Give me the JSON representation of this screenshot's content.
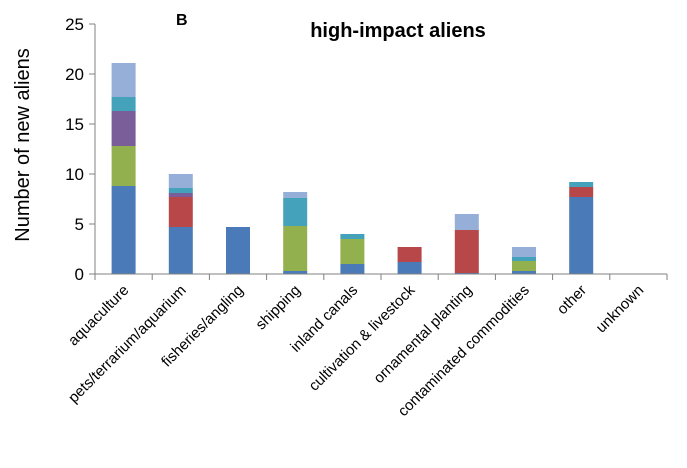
{
  "chart_data": {
    "type": "bar",
    "stacked": true,
    "panel_label": "B",
    "title": "high-impact aliens",
    "xlabel": "",
    "ylabel": "Number of new aliens",
    "ylim": [
      0,
      25
    ],
    "yticks": [
      0,
      5,
      10,
      15,
      20,
      25
    ],
    "grid": false,
    "legend": "none",
    "categories": [
      "aquaculture",
      "pets/terrarium/aquarium",
      "fisheries/angling",
      "shipping",
      "inland canals",
      "cultivation & livestock",
      "ornamental planting",
      "contaminated commodities",
      "other",
      "unknown"
    ],
    "series": [
      {
        "color": "#4a7ab7",
        "values": [
          8.8,
          4.7,
          4.7,
          0.3,
          1.0,
          1.2,
          0.1,
          0.3,
          7.7,
          0
        ]
      },
      {
        "color": "#b8474a",
        "values": [
          0.0,
          3.0,
          0.0,
          0.0,
          0.0,
          1.5,
          4.3,
          0.0,
          1.0,
          0
        ]
      },
      {
        "color": "#93b04e",
        "values": [
          4.0,
          0.0,
          0.0,
          4.5,
          2.5,
          0.0,
          0.0,
          1.0,
          0.0,
          0
        ]
      },
      {
        "color": "#7a5e99",
        "values": [
          3.5,
          0.4,
          0.0,
          0.0,
          0.0,
          0.0,
          0.0,
          0.0,
          0.0,
          0
        ]
      },
      {
        "color": "#45a2bb",
        "values": [
          1.4,
          0.5,
          0.0,
          2.8,
          0.5,
          0.0,
          0.0,
          0.4,
          0.5,
          0
        ]
      },
      {
        "color": "#96afd8",
        "values": [
          3.4,
          1.4,
          0.0,
          0.6,
          0.0,
          0.0,
          1.6,
          1.0,
          0.0,
          0
        ]
      }
    ]
  }
}
